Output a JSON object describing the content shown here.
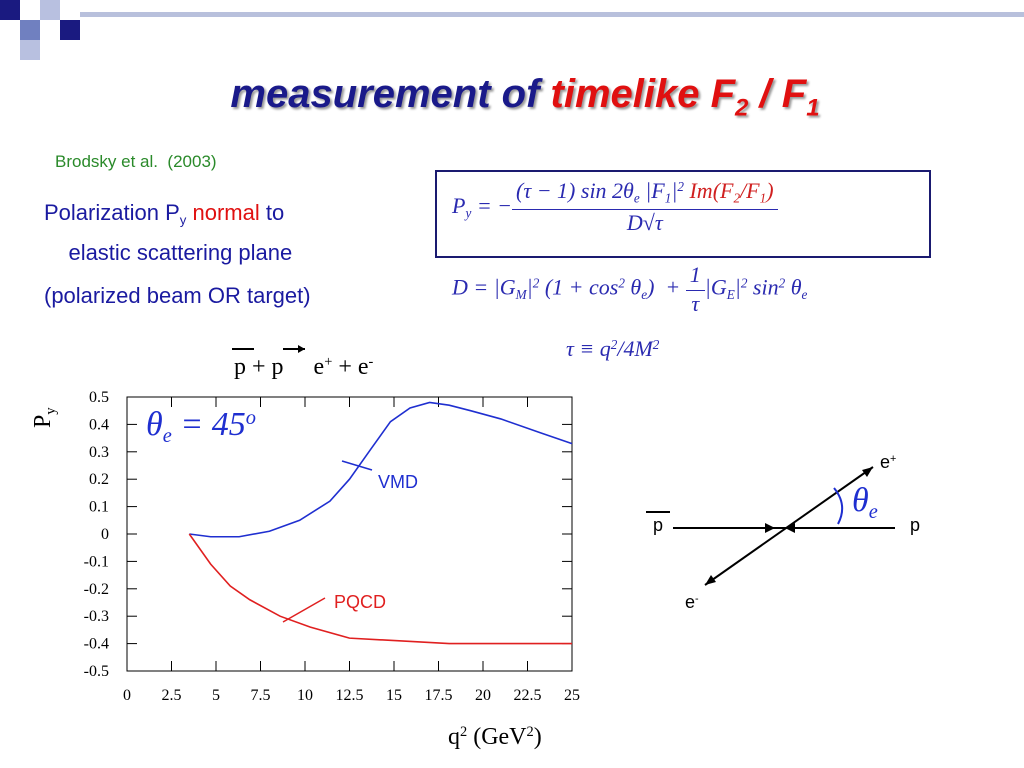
{
  "title": {
    "black": "measurement of",
    "red": "timelike F",
    "sub1": "2",
    "mid": "/ F",
    "sub2": "1"
  },
  "reference": "Brodsky et al.  (2003)",
  "bullets": {
    "first": [
      "Polarization P",
      "y",
      "normal",
      "to",
      "elastic scattering plane"
    ],
    "second": "(polarized beam OR target)"
  },
  "eq1": {
    "lhs": [
      "P",
      "y",
      "= −"
    ],
    "numerator": [
      "(τ − 1) sin 2θ",
      "e",
      " |F",
      "1",
      "|",
      "2",
      "Im(F",
      "2",
      "/F",
      "1",
      ")"
    ],
    "denominator": "D√τ"
  },
  "eq2": {
    "left": [
      "D = |G",
      "M",
      "|",
      "2",
      " (1 + cos",
      "2",
      " θ",
      "e",
      ")  +"
    ],
    "frac_num": "1",
    "frac_den": "τ",
    "right": [
      "|G",
      "E",
      "|",
      "2",
      " sin",
      "2",
      " θ",
      "e"
    ]
  },
  "eq3": [
    "τ ≡ q",
    "2",
    "/4M",
    "2"
  ],
  "chart_data": {
    "type": "line",
    "reaction": [
      "p",
      "+",
      "p",
      "e",
      "+",
      "+",
      "e",
      "-"
    ],
    "annotation": [
      "θ",
      "e",
      " = 45",
      "o"
    ],
    "xlabel": [
      "q",
      "2",
      " (GeV",
      "2",
      ")"
    ],
    "ylabel": [
      "P",
      "y"
    ],
    "xlim": [
      0,
      25
    ],
    "xticks": [
      0,
      2.5,
      5,
      7.5,
      10,
      12.5,
      15,
      17.5,
      20,
      22.5,
      25
    ],
    "ylim": [
      -0.5,
      0.5
    ],
    "yticks": [
      0.5,
      0.4,
      0.3,
      0.2,
      0.1,
      0,
      -0.1,
      -0.2,
      -0.3,
      -0.4,
      -0.5
    ],
    "series": [
      {
        "name": "VMD",
        "color": "#1f2fd0",
        "x": [
          3.5,
          4.7,
          6.3,
          8,
          9.7,
          11.4,
          12.5,
          13.7,
          14.8,
          15.9,
          17,
          18.1,
          19.3,
          21,
          23.2,
          25
        ],
        "values": [
          0,
          -0.01,
          -0.01,
          0.01,
          0.05,
          0.12,
          0.2,
          0.31,
          0.41,
          0.46,
          0.48,
          0.47,
          0.45,
          0.42,
          0.37,
          0.33
        ]
      },
      {
        "name": "PQCD",
        "color": "#e02020",
        "x": [
          3.5,
          4.7,
          5.8,
          6.9,
          8.6,
          10.3,
          12.5,
          15.3,
          18.1,
          25
        ],
        "values": [
          0,
          -0.11,
          -0.19,
          -0.24,
          -0.3,
          -0.34,
          -0.38,
          -0.39,
          -0.4,
          -0.4
        ]
      }
    ]
  },
  "diagram": {
    "e_plus": [
      "e",
      "+"
    ],
    "e_minus": [
      "e",
      "-"
    ],
    "pbar": "p",
    "p": "p",
    "angle": [
      "θ",
      "e"
    ]
  }
}
